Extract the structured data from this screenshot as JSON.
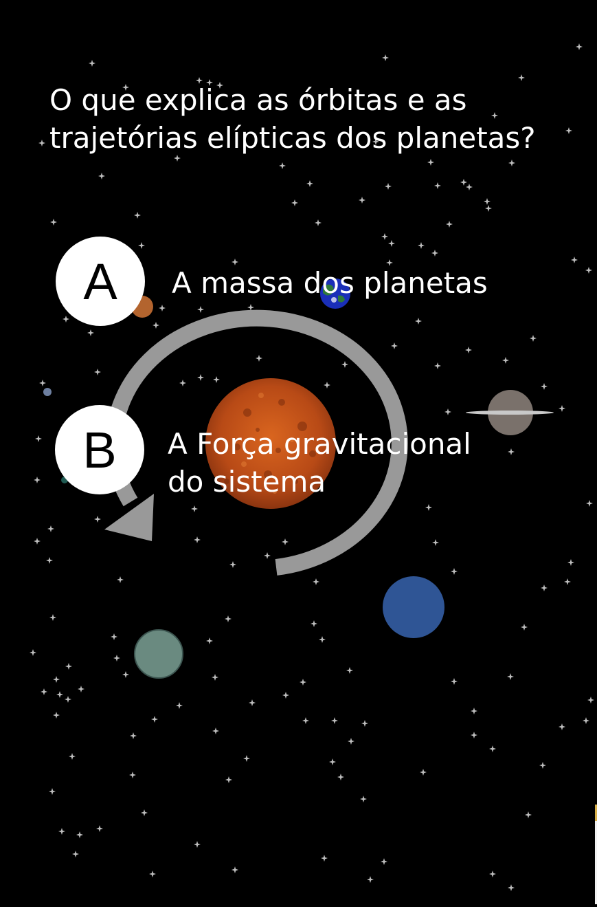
{
  "question": {
    "line1": "O que explica as órbitas e as",
    "line2": "trajetórias elípticas dos planetas?"
  },
  "options": [
    {
      "letter": "A",
      "text": "A massa dos planetas"
    },
    {
      "letter": "B",
      "text_line1": "A Força gravitacional",
      "text_line2": "do sistema"
    }
  ],
  "icons": [
    "orbit-arrow-icon",
    "sun-icon",
    "earth-icon",
    "saturn-icon"
  ],
  "colors": {
    "background": "#000000",
    "star": "#bdbdbd",
    "orbit_arrow": "#999999",
    "sun": "#c5531c",
    "earth_ocean": "#1a2fb8",
    "earth_land": "#2f7a3a",
    "neptune": "#2f5595",
    "teal_planet": "#6a8a80",
    "saturn": "#7a716b",
    "mars_small": "#b3642e",
    "option_circle": "#ffffff",
    "text": "#ffffff"
  }
}
